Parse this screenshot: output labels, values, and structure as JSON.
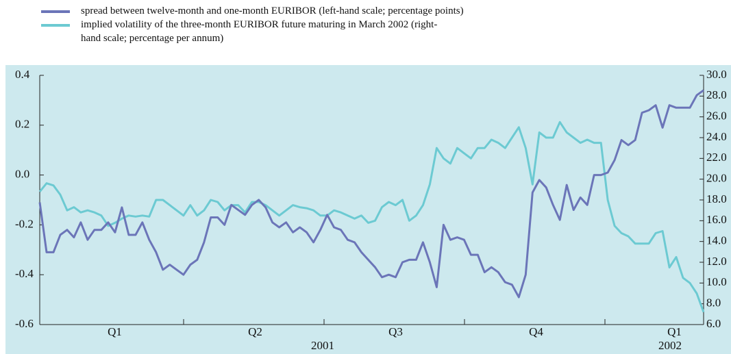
{
  "chart_data": {
    "type": "line",
    "quarters": [
      "Q1",
      "Q2",
      "Q3",
      "Q4",
      "Q1"
    ],
    "years": [
      "2001",
      "2002"
    ],
    "series": [
      {
        "name": "spread between twelve-month and one-month EURIBOR (left-hand scale; percentage points)",
        "color": "#6b75b8",
        "values": [
          -0.11,
          -0.31,
          -0.31,
          -0.24,
          -0.22,
          -0.25,
          -0.19,
          -0.26,
          -0.22,
          -0.22,
          -0.19,
          -0.23,
          -0.13,
          -0.24,
          -0.24,
          -0.19,
          -0.26,
          -0.31,
          -0.38,
          -0.36,
          -0.38,
          -0.4,
          -0.36,
          -0.34,
          -0.27,
          -0.17,
          -0.17,
          -0.2,
          -0.12,
          -0.14,
          -0.16,
          -0.12,
          -0.1,
          -0.13,
          -0.19,
          -0.21,
          -0.19,
          -0.23,
          -0.21,
          -0.23,
          -0.27,
          -0.22,
          -0.16,
          -0.21,
          -0.22,
          -0.26,
          -0.27,
          -0.31,
          -0.34,
          -0.37,
          -0.41,
          -0.4,
          -0.41,
          -0.35,
          -0.34,
          -0.34,
          -0.27,
          -0.35,
          -0.45,
          -0.2,
          -0.26,
          -0.25,
          -0.26,
          -0.32,
          -0.32,
          -0.39,
          -0.37,
          -0.39,
          -0.43,
          -0.44,
          -0.49,
          -0.4,
          -0.07,
          -0.02,
          -0.05,
          -0.12,
          -0.18,
          -0.04,
          -0.14,
          -0.09,
          -0.12,
          0.0,
          0.0,
          0.01,
          0.06,
          0.14,
          0.12,
          0.14,
          0.25,
          0.26,
          0.28,
          0.19,
          0.28,
          0.27,
          0.27,
          0.27,
          0.32,
          0.34
        ]
      },
      {
        "name": "implied volatility of the three-month EURIBOR future maturing in March 2002 (right-hand scale; percentage per annum)",
        "color": "#6ccad2",
        "axis": "y2",
        "values": [
          18.8,
          19.6,
          19.4,
          18.5,
          17.0,
          17.3,
          16.8,
          17.0,
          16.8,
          16.5,
          15.5,
          15.8,
          16.2,
          16.5,
          16.4,
          16.5,
          16.4,
          18.0,
          18.0,
          17.5,
          17.0,
          16.5,
          17.5,
          16.5,
          17.0,
          18.0,
          17.8,
          17.0,
          17.5,
          17.5,
          16.8,
          17.8,
          17.8,
          17.5,
          17.0,
          16.5,
          17.0,
          17.5,
          17.3,
          17.2,
          17.0,
          16.5,
          16.5,
          17.0,
          16.8,
          16.5,
          16.2,
          16.5,
          15.8,
          16.0,
          17.3,
          17.8,
          17.5,
          18.0,
          16.0,
          16.5,
          17.5,
          19.5,
          23.0,
          22.0,
          21.5,
          23.0,
          22.5,
          22.0,
          23.0,
          23.0,
          23.8,
          23.5,
          23.0,
          24.0,
          25.0,
          23.0,
          19.5,
          24.5,
          24.0,
          24.0,
          25.5,
          24.5,
          24.0,
          23.5,
          23.8,
          23.5,
          23.5,
          18.0,
          15.5,
          14.8,
          14.5,
          13.8,
          13.8,
          13.8,
          14.8,
          15.0,
          11.5,
          12.5,
          10.5,
          10.0,
          9.0,
          7.2
        ]
      }
    ],
    "ylim": [
      -0.6,
      0.4
    ],
    "yticks": [
      -0.6,
      -0.4,
      -0.2,
      {
        "value": 0,
        "label": "0.0"
      },
      0.2,
      0.4
    ],
    "y2lim": [
      6,
      30
    ],
    "y2ticks": [
      {
        "value": 6,
        "label": "6.0"
      },
      {
        "value": 8,
        "label": "8.0"
      },
      {
        "value": 10,
        "label": "10.0"
      },
      {
        "value": 12,
        "label": "12.0"
      },
      {
        "value": 14,
        "label": "14.0"
      },
      {
        "value": 16,
        "label": "16.0"
      },
      {
        "value": 18,
        "label": "18.0"
      },
      {
        "value": 20,
        "label": "20.0"
      },
      {
        "value": 22,
        "label": "22.0"
      },
      {
        "value": 24,
        "label": "24.0"
      },
      {
        "value": 26,
        "label": "26.0"
      },
      {
        "value": 28,
        "label": "28.0"
      },
      {
        "value": 30,
        "label": "30.0"
      }
    ]
  }
}
